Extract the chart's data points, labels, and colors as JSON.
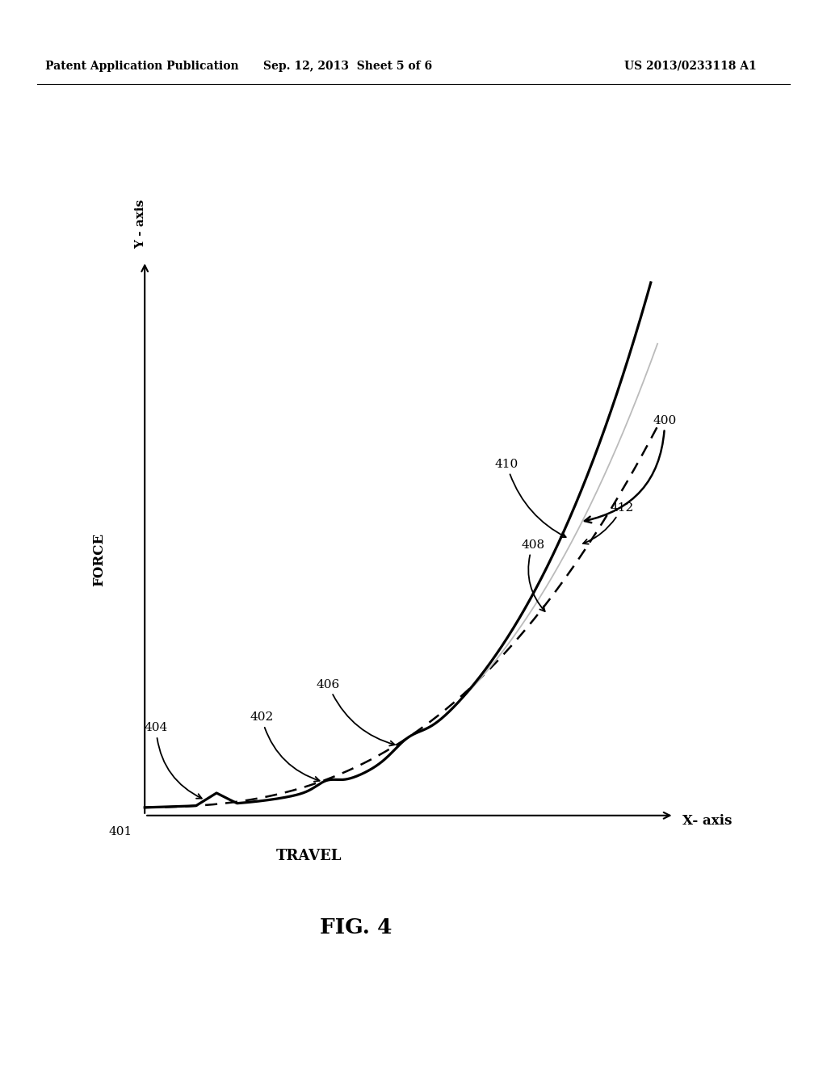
{
  "header_left": "Patent Application Publication",
  "header_center": "Sep. 12, 2013  Sheet 5 of 6",
  "header_right": "US 2013/0233118 A1",
  "fig_label": "FIG. 4",
  "xlabel": "TRAVEL",
  "x_axis_label": "X- axis",
  "ylabel": "FORCE",
  "y_axis_label": "Y - axis",
  "label_401": "401",
  "label_400": "400",
  "label_402": "402",
  "label_404": "404",
  "label_406": "406",
  "label_408": "408",
  "label_410": "410",
  "label_412": "412",
  "bg_color": "#ffffff"
}
